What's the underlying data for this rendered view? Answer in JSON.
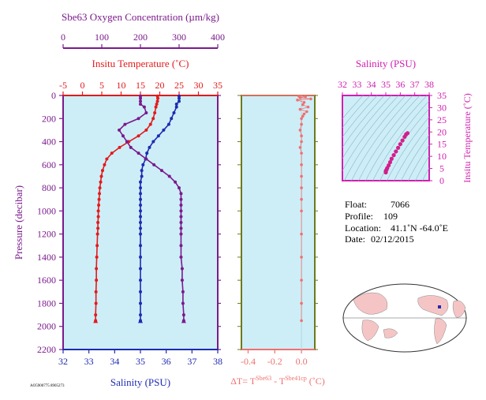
{
  "colors": {
    "plot_bg": "#cdeef7",
    "oxygen": "#7b1a8c",
    "temperature": "#e31a1c",
    "salinity": "#1f2bb0",
    "delta_t": "#f07070",
    "pressure_axis": "#7b1a8c",
    "ts_axis": "#d21fb0",
    "ts_points": "#d21f8c",
    "delta_frame": "#6b7a1a"
  },
  "main_panel": {
    "oxygen_title": "Sbe63 Oxygen Concentration (µm/kg)",
    "oxygen_ticks": [
      "0",
      "100",
      "200",
      "300",
      "400"
    ],
    "temp_title": "Insitu Temperature (˚C)",
    "temp_ticks": [
      "-5",
      "0",
      "5",
      "10",
      "15",
      "20",
      "25",
      "30",
      "35"
    ],
    "pressure_label": "Pressure (decibar)",
    "pressure_ticks": [
      "0",
      "200",
      "400",
      "600",
      "800",
      "1000",
      "1200",
      "1400",
      "1600",
      "1800",
      "2000",
      "2200"
    ],
    "salinity_label": "Salinity (PSU)",
    "salinity_ticks": [
      "32",
      "33",
      "34",
      "35",
      "36",
      "37",
      "38"
    ],
    "footer_code": "AO5900775 8905273"
  },
  "delta_panel": {
    "ticks": [
      "-0.4",
      "-0.2",
      "0.0"
    ],
    "label_prefix": "ΔT= T",
    "label_sup1": "Sbe63",
    "label_mid": " - T",
    "label_sup2": "Sbe41cp",
    "label_suffix": " (˚C)"
  },
  "ts_panel": {
    "title": "Salinity (PSU)",
    "x_ticks": [
      "32",
      "33",
      "34",
      "35",
      "36",
      "37",
      "38"
    ],
    "y_ticks": [
      "0",
      "5",
      "10",
      "15",
      "20",
      "25",
      "30",
      "35"
    ],
    "y_label": "Insitu Temperature (˚C)"
  },
  "info": {
    "float_label": "Float:",
    "float_value": "7066",
    "profile_label": "Profile:",
    "profile_value": "109",
    "location_label": "Location:",
    "location_value": "41.1˚N  -64.0˚E",
    "date_label": "Date:",
    "date_value": "02/12/2015"
  },
  "chart_data": [
    {
      "type": "line",
      "name": "profiles",
      "y_axis": "pressure_decibar",
      "ylim": [
        2200,
        0
      ],
      "xlim_temperature": [
        -5,
        35
      ],
      "xlim_salinity": [
        32,
        38
      ],
      "xlim_oxygen": [
        0,
        400
      ],
      "pressure": [
        5,
        25,
        50,
        75,
        100,
        150,
        200,
        250,
        300,
        350,
        400,
        450,
        500,
        550,
        600,
        650,
        700,
        750,
        800,
        850,
        900,
        950,
        1000,
        1050,
        1100,
        1150,
        1200,
        1300,
        1400,
        1500,
        1600,
        1700,
        1800,
        1900,
        1950
      ],
      "series": [
        {
          "name": "Temperature",
          "values": [
            19.4,
            19.5,
            19.4,
            19.2,
            19.0,
            18.7,
            18.3,
            17.6,
            16.5,
            14.5,
            12.0,
            9.6,
            7.6,
            6.3,
            5.7,
            5.2,
            4.9,
            4.7,
            4.5,
            4.4,
            4.3,
            4.2,
            4.1,
            4.1,
            4.0,
            4.0,
            3.9,
            3.8,
            3.7,
            3.6,
            3.6,
            3.5,
            3.5,
            3.4,
            3.4
          ]
        },
        {
          "name": "Salinity",
          "values": [
            36.5,
            36.5,
            36.5,
            36.4,
            36.4,
            36.3,
            36.2,
            36.1,
            35.9,
            35.7,
            35.5,
            35.35,
            35.25,
            35.2,
            35.1,
            35.05,
            35.05,
            35.0,
            35.0,
            35.0,
            35.0,
            35.0,
            35.0,
            35.0,
            35.0,
            35.0,
            35.0,
            35.0,
            35.0,
            35.0,
            35.0,
            35.0,
            35.0,
            35.0,
            35.0
          ]
        },
        {
          "name": "Oxygen",
          "values": [
            200,
            200,
            200,
            200,
            210,
            215,
            195,
            160,
            145,
            155,
            165,
            175,
            195,
            215,
            235,
            255,
            275,
            290,
            300,
            305,
            305,
            305,
            305,
            305,
            305,
            305,
            305,
            305,
            305,
            308,
            308,
            310,
            310,
            312,
            312
          ]
        }
      ]
    },
    {
      "type": "scatter",
      "name": "delta_t",
      "xlim": [
        -0.45,
        0.1
      ],
      "ylim": [
        2200,
        0
      ],
      "pressure": [
        5,
        10,
        20,
        30,
        40,
        60,
        80,
        100,
        120,
        140,
        160,
        180,
        200,
        250,
        300,
        350,
        400,
        450,
        500,
        600,
        700,
        800,
        900,
        1000,
        1200,
        1400,
        1600,
        1800,
        1950
      ],
      "values": [
        -0.02,
        0.03,
        -0.01,
        0.07,
        -0.03,
        0.02,
        0.01,
        0.05,
        -0.01,
        0.04,
        0.02,
        0.01,
        0.0,
        0.0,
        -0.01,
        0.0,
        0.0,
        -0.01,
        0.0,
        0.0,
        0.0,
        0.0,
        0.0,
        0.0,
        0.0,
        0.0,
        0.0,
        0.0,
        0.0
      ]
    },
    {
      "type": "scatter",
      "name": "t_s_diagram",
      "xlim": [
        32,
        38
      ],
      "ylim": [
        0,
        35
      ],
      "x": [
        35.0,
        35.0,
        35.05,
        35.1,
        35.2,
        35.3,
        35.4,
        35.55,
        35.7,
        35.85,
        36.0,
        36.15,
        36.3,
        36.4,
        36.5
      ],
      "y": [
        3.4,
        4.0,
        4.5,
        5.2,
        6.3,
        7.6,
        9.0,
        10.5,
        12.0,
        13.5,
        15.0,
        16.5,
        18.0,
        19.0,
        19.5
      ]
    }
  ]
}
